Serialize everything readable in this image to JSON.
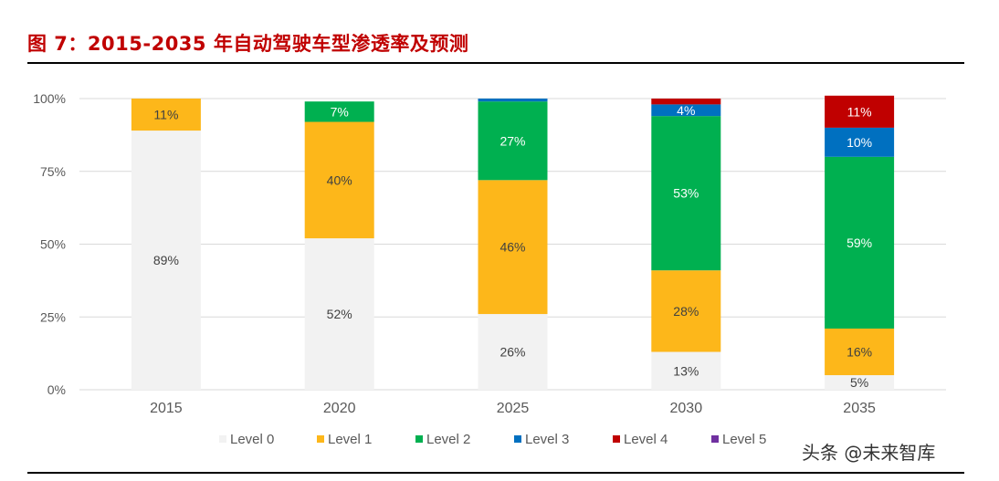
{
  "title": "图 7：2015-2035 年自动驾驶车型渗透率及预测",
  "watermark": "头条 @未来智库",
  "colors": {
    "title": "#c00000",
    "Level 0": "#f2f2f2",
    "Level 1": "#fdb71a",
    "Level 2": "#00b050",
    "Level 3": "#0070c0",
    "Level 4": "#c00000",
    "Level 5": "#7030a0"
  },
  "chart_data": {
    "type": "bar",
    "stacked": true,
    "categories": [
      "2015",
      "2020",
      "2025",
      "2030",
      "2035"
    ],
    "series": [
      {
        "name": "Level 0",
        "values": [
          89,
          52,
          26,
          13,
          5
        ],
        "labels": [
          "89%",
          "52%",
          "26%",
          "13%",
          "5%"
        ]
      },
      {
        "name": "Level 1",
        "values": [
          11,
          40,
          46,
          28,
          16
        ],
        "labels": [
          "11%",
          "40%",
          "46%",
          "28%",
          "16%"
        ]
      },
      {
        "name": "Level 2",
        "values": [
          0,
          7,
          27,
          53,
          59
        ],
        "labels": [
          "",
          "7%",
          "27%",
          "53%",
          "59%"
        ]
      },
      {
        "name": "Level 3",
        "values": [
          0,
          0,
          1,
          4,
          10
        ],
        "labels": [
          "",
          "",
          "",
          "4%",
          "10%"
        ]
      },
      {
        "name": "Level 4",
        "values": [
          0,
          0,
          0,
          2,
          11
        ],
        "labels": [
          "",
          "",
          "",
          "",
          "11%"
        ]
      },
      {
        "name": "Level 5",
        "values": [
          0,
          0,
          0,
          0,
          0
        ],
        "labels": [
          "",
          "",
          "",
          "",
          ""
        ]
      }
    ],
    "ylim": [
      0,
      100
    ],
    "yticks": [
      0,
      25,
      50,
      75,
      100
    ],
    "ytick_labels": [
      "0%",
      "25%",
      "50%",
      "75%",
      "100%"
    ],
    "grid": true,
    "legend": "bottom",
    "xlabel": "",
    "ylabel": ""
  }
}
